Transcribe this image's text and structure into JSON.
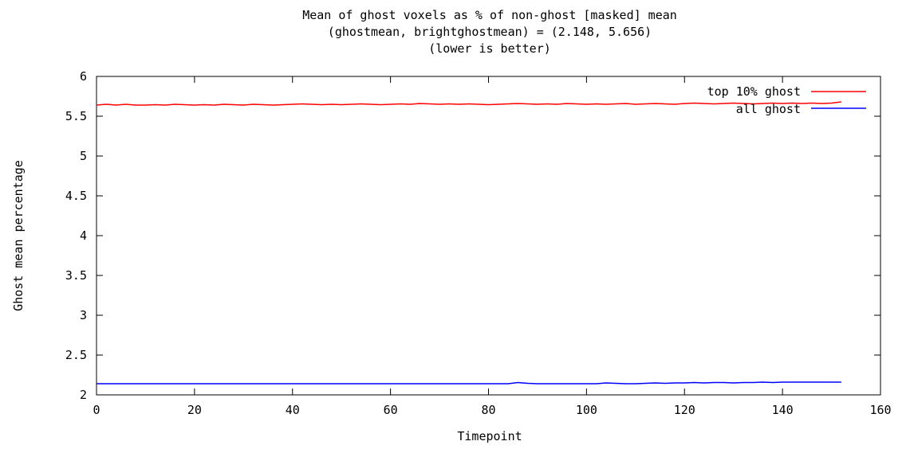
{
  "chart_data": {
    "type": "line",
    "title_lines": [
      "Mean of ghost voxels as % of non-ghost [masked] mean",
      "(ghostmean, brightghostmean) = (2.148, 5.656)",
      "(lower is better)"
    ],
    "xlabel": "Timepoint",
    "ylabel": "Ghost mean percentage",
    "xlim": [
      0,
      160
    ],
    "ylim": [
      2,
      6
    ],
    "xticks": [
      {
        "value": 0,
        "label": "0"
      },
      {
        "value": 20,
        "label": "20"
      },
      {
        "value": 40,
        "label": "40"
      },
      {
        "value": 60,
        "label": "60"
      },
      {
        "value": 80,
        "label": "80"
      },
      {
        "value": 100,
        "label": "100"
      },
      {
        "value": 120,
        "label": "120"
      },
      {
        "value": 140,
        "label": "140"
      },
      {
        "value": 160,
        "label": "160"
      }
    ],
    "yticks": [
      {
        "value": 2,
        "label": "2"
      },
      {
        "value": 2.5,
        "label": "2.5"
      },
      {
        "value": 3,
        "label": "3"
      },
      {
        "value": 3.5,
        "label": "3.5"
      },
      {
        "value": 4,
        "label": "4"
      },
      {
        "value": 4.5,
        "label": "4.5"
      },
      {
        "value": 5,
        "label": "5"
      },
      {
        "value": 5.5,
        "label": "5.5"
      },
      {
        "value": 6,
        "label": "6"
      }
    ],
    "grid": false,
    "legend_position": "top-right",
    "series": [
      {
        "name": "top 10% ghost",
        "color": "#ff0000",
        "x": [
          0,
          2,
          4,
          6,
          8,
          10,
          12,
          14,
          16,
          18,
          20,
          22,
          24,
          26,
          28,
          30,
          32,
          34,
          36,
          38,
          40,
          42,
          44,
          46,
          48,
          50,
          52,
          54,
          56,
          58,
          60,
          62,
          64,
          66,
          68,
          70,
          72,
          74,
          76,
          78,
          80,
          82,
          84,
          86,
          88,
          90,
          92,
          94,
          96,
          98,
          100,
          102,
          104,
          106,
          108,
          110,
          112,
          114,
          116,
          118,
          120,
          122,
          124,
          126,
          128,
          130,
          132,
          134,
          136,
          138,
          140,
          142,
          144,
          146,
          148,
          150,
          152
        ],
        "y": [
          5.64,
          5.65,
          5.64,
          5.65,
          5.64,
          5.64,
          5.645,
          5.64,
          5.65,
          5.645,
          5.64,
          5.645,
          5.64,
          5.65,
          5.645,
          5.64,
          5.65,
          5.645,
          5.64,
          5.645,
          5.65,
          5.655,
          5.65,
          5.645,
          5.65,
          5.645,
          5.65,
          5.655,
          5.65,
          5.645,
          5.65,
          5.655,
          5.65,
          5.66,
          5.655,
          5.65,
          5.655,
          5.65,
          5.655,
          5.65,
          5.645,
          5.65,
          5.655,
          5.66,
          5.655,
          5.65,
          5.655,
          5.65,
          5.66,
          5.655,
          5.65,
          5.655,
          5.65,
          5.655,
          5.66,
          5.65,
          5.655,
          5.66,
          5.655,
          5.65,
          5.66,
          5.665,
          5.66,
          5.655,
          5.66,
          5.665,
          5.66,
          5.655,
          5.66,
          5.665,
          5.66,
          5.665,
          5.66,
          5.665,
          5.66,
          5.665,
          5.68
        ]
      },
      {
        "name": "all ghost",
        "color": "#0000ff",
        "x": [
          0,
          2,
          4,
          6,
          8,
          10,
          12,
          14,
          16,
          18,
          20,
          22,
          24,
          26,
          28,
          30,
          32,
          34,
          36,
          38,
          40,
          42,
          44,
          46,
          48,
          50,
          52,
          54,
          56,
          58,
          60,
          62,
          64,
          66,
          68,
          70,
          72,
          74,
          76,
          78,
          80,
          82,
          84,
          86,
          88,
          90,
          92,
          94,
          96,
          98,
          100,
          102,
          104,
          106,
          108,
          110,
          112,
          114,
          116,
          118,
          120,
          122,
          124,
          126,
          128,
          130,
          132,
          134,
          136,
          138,
          140,
          142,
          144,
          146,
          148,
          150,
          152
        ],
        "y": [
          2.14,
          2.14,
          2.14,
          2.14,
          2.14,
          2.14,
          2.14,
          2.14,
          2.14,
          2.14,
          2.14,
          2.14,
          2.14,
          2.14,
          2.14,
          2.14,
          2.14,
          2.14,
          2.14,
          2.14,
          2.14,
          2.14,
          2.14,
          2.14,
          2.14,
          2.14,
          2.14,
          2.14,
          2.14,
          2.14,
          2.14,
          2.14,
          2.14,
          2.14,
          2.14,
          2.14,
          2.14,
          2.14,
          2.14,
          2.14,
          2.14,
          2.14,
          2.14,
          2.155,
          2.145,
          2.14,
          2.14,
          2.14,
          2.14,
          2.14,
          2.14,
          2.14,
          2.15,
          2.145,
          2.14,
          2.14,
          2.145,
          2.15,
          2.145,
          2.15,
          2.15,
          2.155,
          2.15,
          2.155,
          2.155,
          2.15,
          2.155,
          2.155,
          2.16,
          2.155,
          2.16,
          2.16,
          2.16,
          2.16,
          2.16,
          2.16,
          2.16
        ]
      }
    ]
  }
}
